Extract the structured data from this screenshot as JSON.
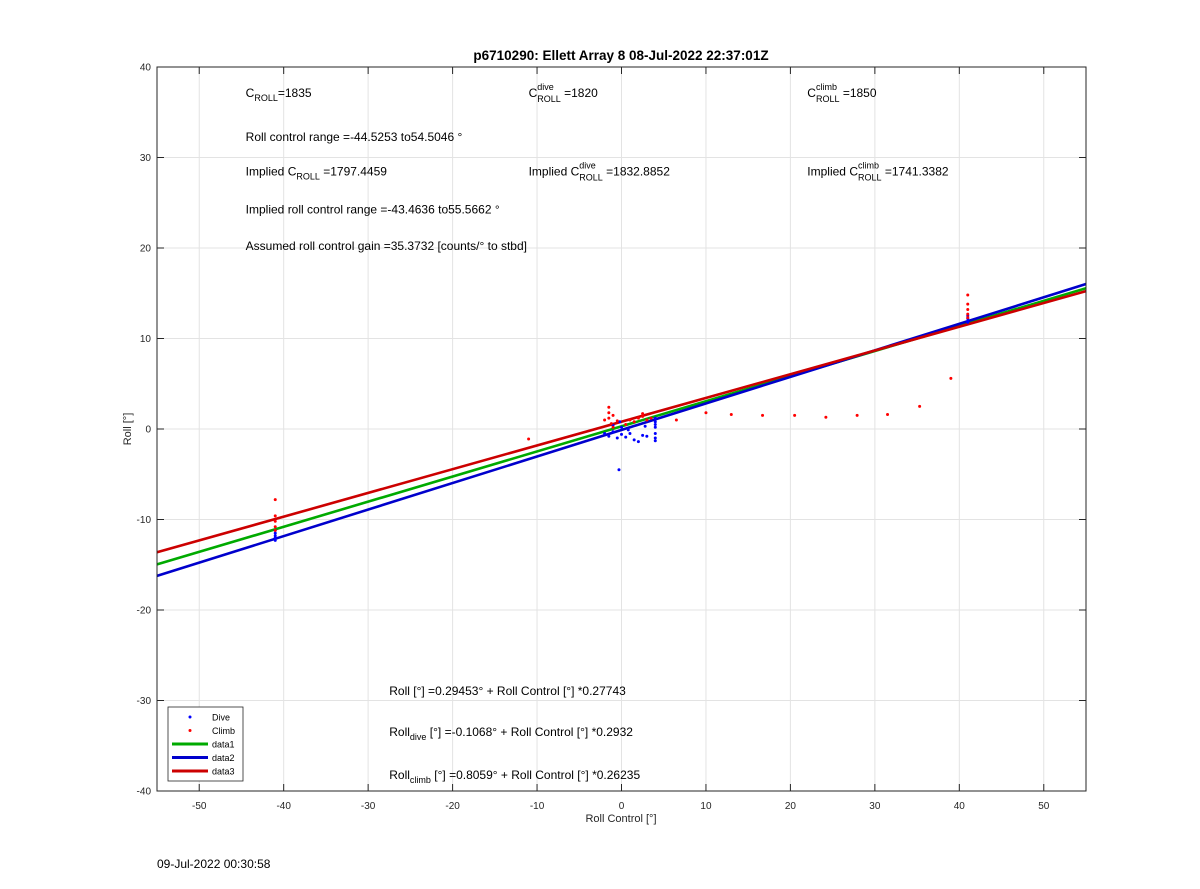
{
  "chart_data": {
    "type": "scatter",
    "title": "p6710290: Ellett Array 8 08-Jul-2022 22:37:01Z",
    "xlabel": "Roll Control [°]",
    "ylabel": "Roll [°]",
    "xlim": [
      -55,
      55
    ],
    "ylim": [
      -40,
      40
    ],
    "xticks": [
      -50,
      -40,
      -30,
      -20,
      -10,
      0,
      10,
      20,
      30,
      40,
      50
    ],
    "yticks": [
      -40,
      -30,
      -20,
      -10,
      0,
      10,
      20,
      30,
      40
    ],
    "grid": true,
    "legend_position": "bottom-left",
    "series": [
      {
        "name": "Dive",
        "kind": "points",
        "color": "#0000ff",
        "points": [
          [
            -41,
            -11.5
          ],
          [
            -41,
            -12.0
          ],
          [
            -41,
            -11.2
          ],
          [
            -41,
            -11.8
          ],
          [
            -41,
            -12.3
          ],
          [
            -2,
            -0.5
          ],
          [
            -1.5,
            -0.8
          ],
          [
            -1,
            -0.3
          ],
          [
            -0.5,
            -1.0
          ],
          [
            0,
            -0.6
          ],
          [
            0,
            0.2
          ],
          [
            0.5,
            -0.9
          ],
          [
            1,
            -0.5
          ],
          [
            1.5,
            -1.2
          ],
          [
            2,
            -1.4
          ],
          [
            2.5,
            -0.7
          ],
          [
            3,
            -0.8
          ],
          [
            4,
            0.2
          ],
          [
            4,
            -0.5
          ],
          [
            4,
            -1.0
          ],
          [
            4,
            -1.3
          ],
          [
            4,
            0.8
          ],
          [
            4,
            1.2
          ],
          [
            4,
            0.5
          ],
          [
            -0.3,
            -4.5
          ],
          [
            -1,
            0.4
          ],
          [
            -0.2,
            0.8
          ],
          [
            0.8,
            -0.1
          ],
          [
            2.8,
            0.3
          ],
          [
            41,
            11.8
          ],
          [
            41,
            12.2
          ],
          [
            41,
            11.9
          ],
          [
            41,
            12.5
          ]
        ]
      },
      {
        "name": "Climb",
        "kind": "points",
        "color": "#ff0000",
        "points": [
          [
            -41,
            -7.8
          ],
          [
            -41,
            -9.6
          ],
          [
            -41,
            -10.2
          ],
          [
            -41,
            -10.8
          ],
          [
            -41,
            -11.2
          ],
          [
            -11,
            -1.1
          ],
          [
            -2,
            1.0
          ],
          [
            -1.5,
            2.4
          ],
          [
            -1.5,
            1.8
          ],
          [
            -1.5,
            1.2
          ],
          [
            -1.2,
            0.6
          ],
          [
            -1,
            1.5
          ],
          [
            -1,
            0.2
          ],
          [
            -0.5,
            0.9
          ],
          [
            0.5,
            0.5
          ],
          [
            1,
            1.0
          ],
          [
            1.5,
            0.8
          ],
          [
            2,
            1.2
          ],
          [
            2.5,
            1.7
          ],
          [
            2.5,
            1.4
          ],
          [
            3,
            1.0
          ],
          [
            3.5,
            1.2
          ],
          [
            6.5,
            1.0
          ],
          [
            10,
            1.8
          ],
          [
            13,
            1.6
          ],
          [
            16.7,
            1.5
          ],
          [
            20.5,
            1.5
          ],
          [
            24.2,
            1.3
          ],
          [
            27.9,
            1.5
          ],
          [
            31.5,
            1.6
          ],
          [
            35.3,
            2.5
          ],
          [
            39,
            5.6
          ],
          [
            41,
            14.8
          ],
          [
            41,
            13.8
          ],
          [
            41,
            13.2
          ],
          [
            41,
            12.7
          ],
          [
            41,
            12.3
          ]
        ]
      },
      {
        "name": "data1",
        "kind": "line",
        "color": "#00aa00",
        "slope": 0.27743,
        "intercept": 0.29453
      },
      {
        "name": "data2",
        "kind": "line",
        "color": "#0000cc",
        "slope": 0.2932,
        "intercept": -0.1068
      },
      {
        "name": "data3",
        "kind": "line",
        "color": "#cc0000",
        "slope": 0.26235,
        "intercept": 0.8059
      }
    ],
    "annotations": [
      {
        "key": "croll",
        "x": -44.5,
        "y": 36.7,
        "base": "C",
        "sup": "",
        "sub": "ROLL",
        "tail": "=1835"
      },
      {
        "key": "croll-dive",
        "x": -11.0,
        "y": 36.7,
        "base": "C",
        "sup": "dive",
        "sub": "ROLL",
        "tail": " =1820"
      },
      {
        "key": "croll-climb",
        "x": 22.0,
        "y": 36.7,
        "base": "C",
        "sup": "climb",
        "sub": "ROLL",
        "tail": " =1850"
      },
      {
        "key": "roll-control-range",
        "x": -44.5,
        "y": 31.8,
        "base": "Roll control range =-44.5253 to54.5046 °"
      },
      {
        "key": "implied-croll",
        "x": -44.5,
        "y": 28.0,
        "base": "Implied C",
        "sup": "",
        "sub": "ROLL",
        "tail": " =1797.4459"
      },
      {
        "key": "implied-croll-dive",
        "x": -11.0,
        "y": 28.0,
        "base": "Implied C",
        "sup": "dive",
        "sub": "ROLL",
        "tail": " =1832.8852"
      },
      {
        "key": "implied-croll-climb",
        "x": 22.0,
        "y": 28.0,
        "base": "Implied C",
        "sup": "climb",
        "sub": "ROLL",
        "tail": " =1741.3382"
      },
      {
        "key": "implied-roll-control-range",
        "x": -44.5,
        "y": 23.8,
        "base": "Implied roll control range =-43.4636 to55.5662 °"
      },
      {
        "key": "roll-control-gain",
        "x": -44.5,
        "y": 19.8,
        "base": "Assumed roll control gain =35.3732 [counts/° to stbd]"
      },
      {
        "key": "fit-all",
        "x": -27.5,
        "y": -29.4,
        "base": "Roll [°] =0.29453° + Roll Control [°] *0.27743"
      },
      {
        "key": "fit-dive",
        "x": -27.5,
        "y": -33.9,
        "base": "Roll",
        "sub": "dive",
        "tail": " [°] =-0.1068° + Roll Control [°] *0.2932"
      },
      {
        "key": "fit-climb",
        "x": -27.5,
        "y": -38.7,
        "base": "Roll",
        "sub": "climb",
        "tail": " [°] =0.8059° + Roll Control [°] *0.26235"
      }
    ]
  },
  "footer": {
    "timestamp": "09-Jul-2022 00:30:58"
  }
}
